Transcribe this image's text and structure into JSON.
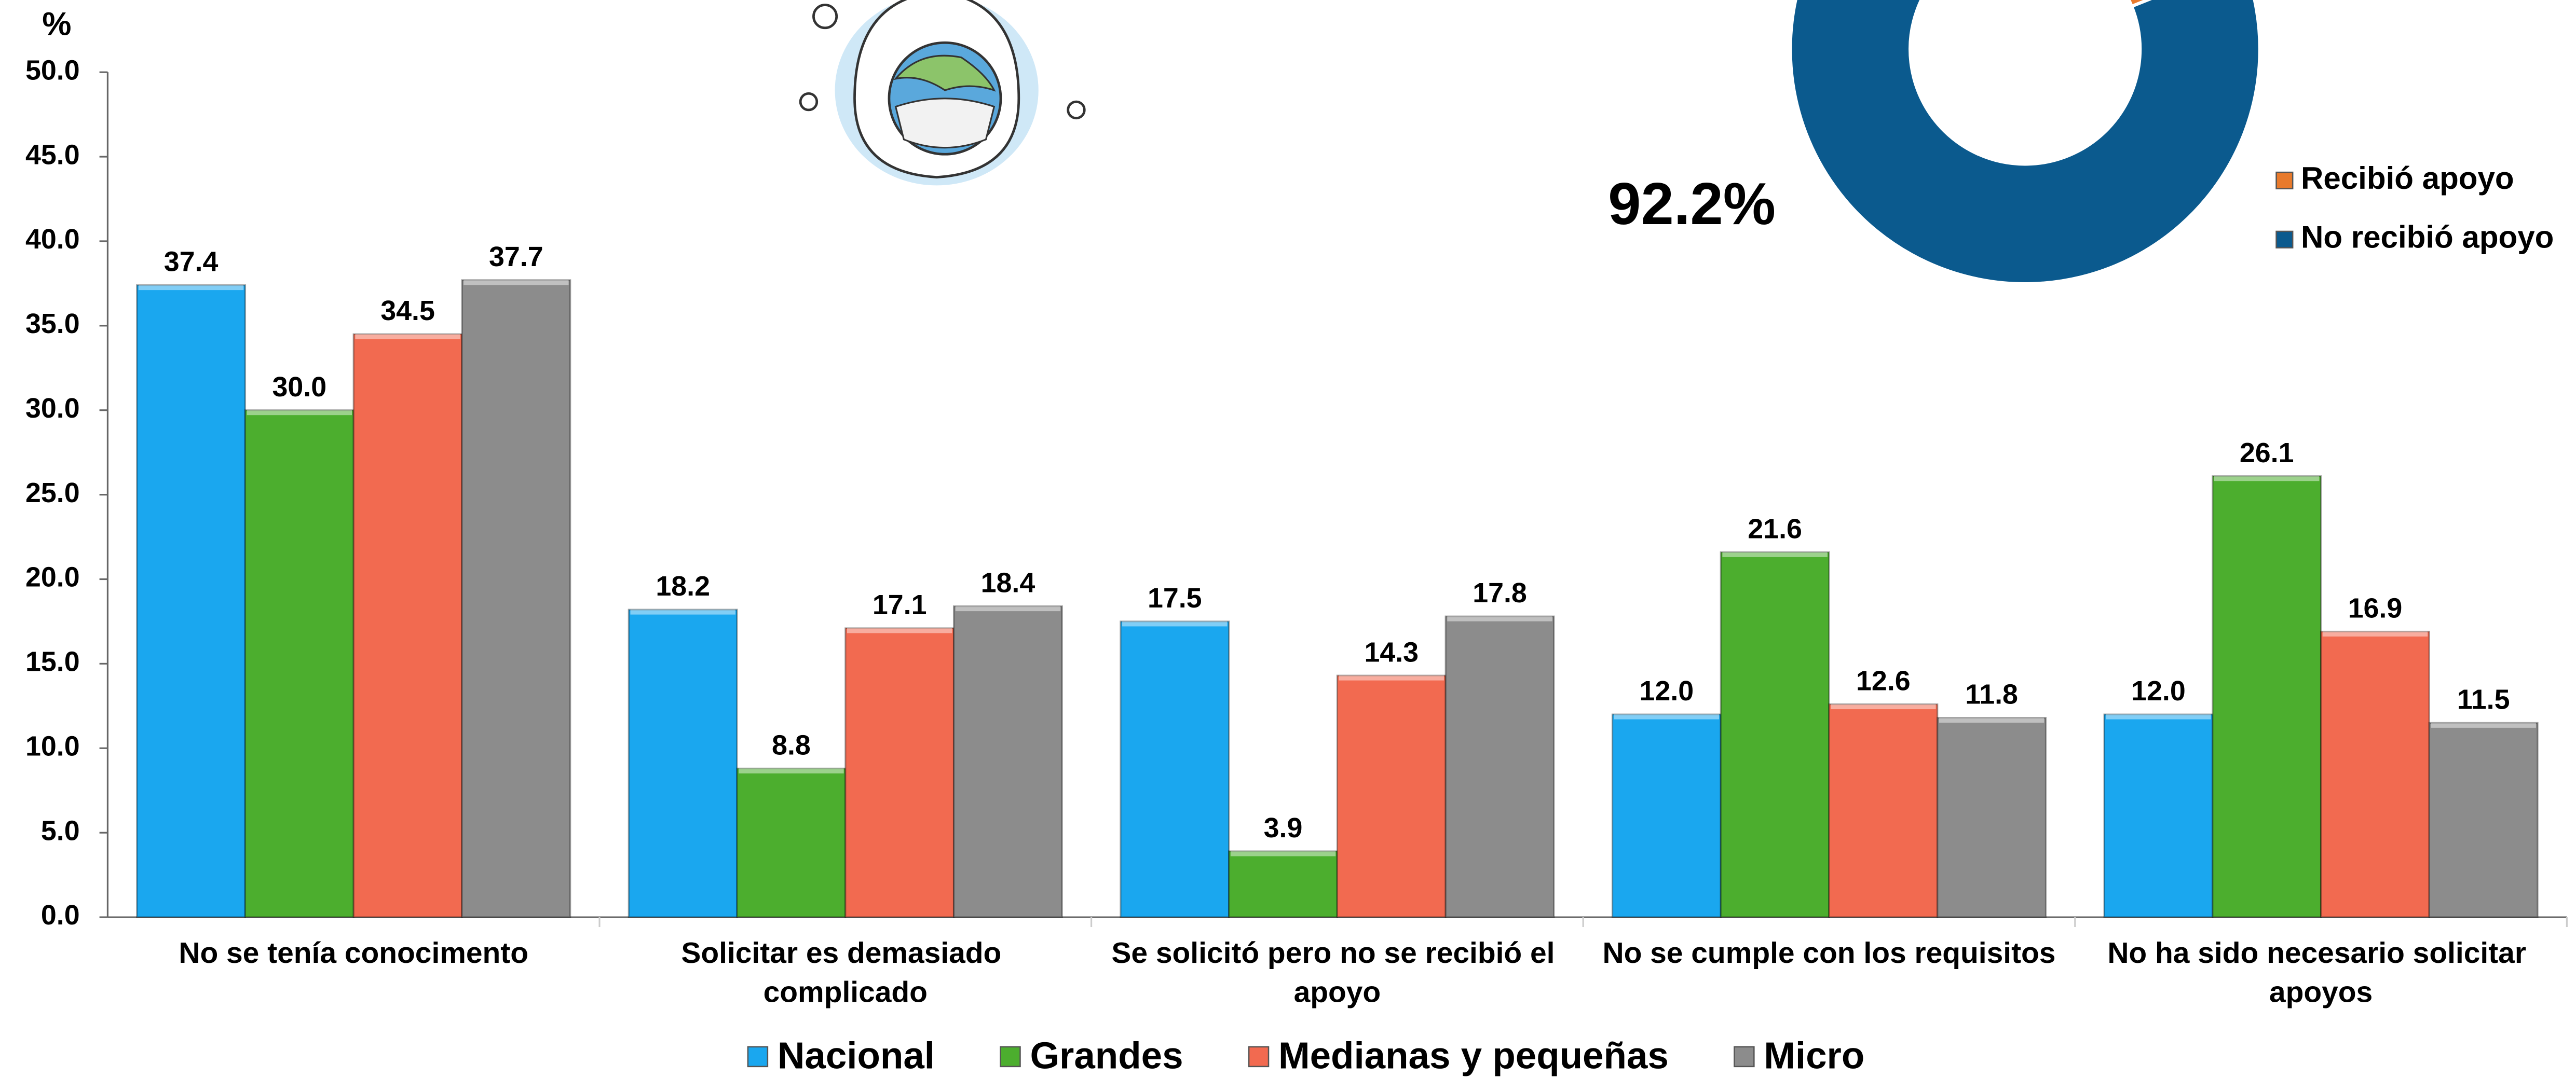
{
  "chart_data": [
    {
      "type": "bar",
      "y_label": "%",
      "categories": [
        "No se tenía conocimento",
        "Solicitar es demasiado complicado",
        "Se solicitó pero no se recibió el apoyo",
        "No se cumple con los requisitos",
        "No ha sido necesario solicitar apoyos"
      ],
      "series": [
        {
          "name": "Nacional",
          "color": "#1aa7ef",
          "values": [
            37.4,
            18.2,
            17.5,
            12.0,
            12.0
          ],
          "value_labels": [
            "37.4",
            "18.2",
            "17.5",
            "12.0",
            "12.0"
          ]
        },
        {
          "name": "Grandes",
          "color": "#4cae2e",
          "values": [
            30.0,
            8.8,
            3.9,
            21.6,
            26.1
          ],
          "value_labels": [
            "30.0",
            "8.8",
            "3.9",
            "21.6",
            "26.1"
          ]
        },
        {
          "name": "Medianas y pequeñas",
          "color": "#f26a50",
          "values": [
            34.5,
            17.1,
            14.3,
            12.6,
            16.9
          ],
          "value_labels": [
            "34.5",
            "17.1",
            "14.3",
            "12.6",
            "16.9"
          ]
        },
        {
          "name": "Micro",
          "color": "#8c8c8c",
          "values": [
            37.7,
            18.4,
            17.8,
            11.8,
            11.5
          ],
          "value_labels": [
            "37.7",
            "18.4",
            "17.8",
            "11.8",
            "11.5"
          ]
        }
      ],
      "ylim": [
        0,
        50
      ],
      "yticks": [
        {
          "value": 0,
          "label": "0.0"
        },
        {
          "value": 5,
          "label": "5.0"
        },
        {
          "value": 10,
          "label": "10.0"
        },
        {
          "value": 15,
          "label": "15.0"
        },
        {
          "value": 20,
          "label": "20.0"
        },
        {
          "value": 25,
          "label": "25.0"
        },
        {
          "value": 30,
          "label": "30.0"
        },
        {
          "value": 35,
          "label": "35.0"
        },
        {
          "value": 40,
          "label": "40.0"
        },
        {
          "value": 45,
          "label": "45.0"
        },
        {
          "value": 50,
          "label": "50.0"
        }
      ],
      "grid": false,
      "legend": "bottom"
    },
    {
      "type": "donut",
      "categories": [
        "Recibió apoyo",
        "No recibió apoyo"
      ],
      "colors": [
        "#e87a2c",
        "#0b5a8e"
      ],
      "values": [
        7.8,
        92.2
      ],
      "value_labels": [
        null,
        "92.2%"
      ],
      "legend": "right"
    }
  ]
}
